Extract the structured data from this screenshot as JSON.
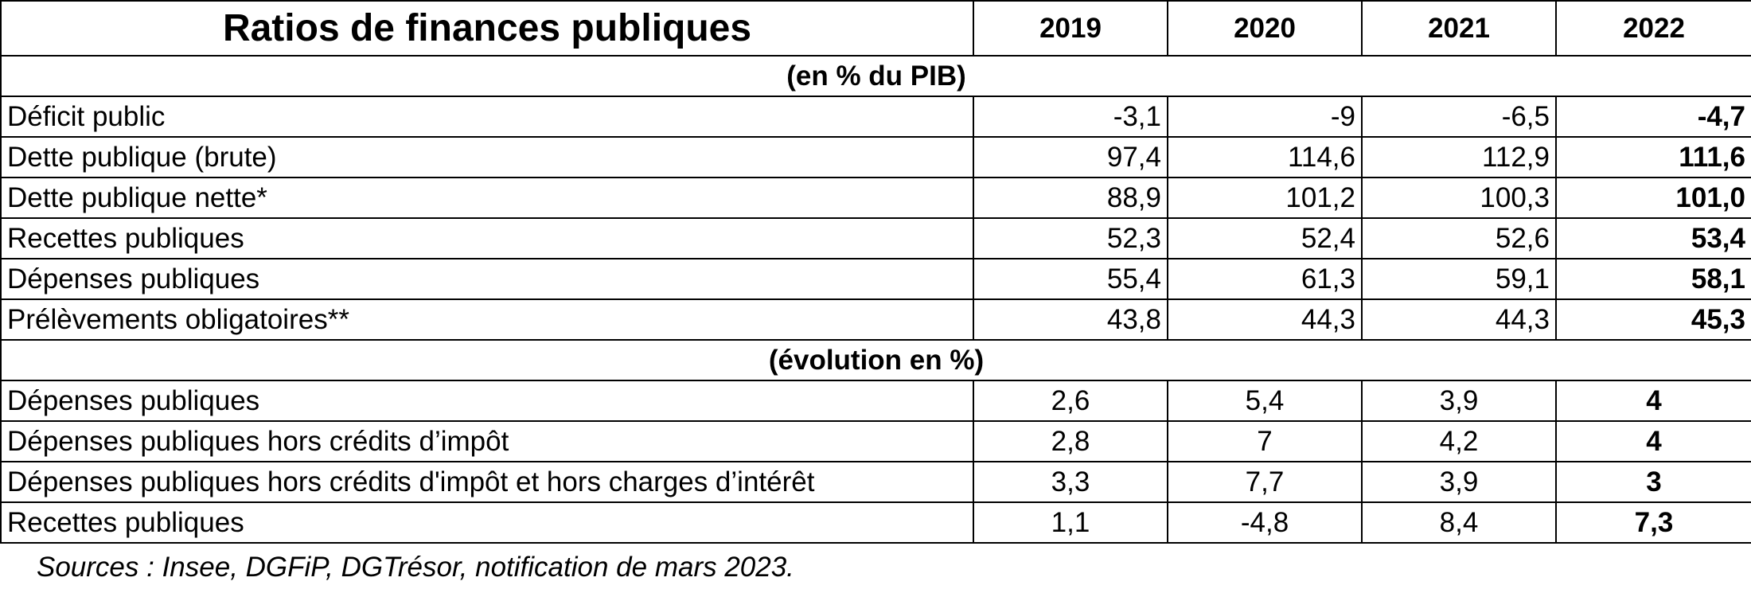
{
  "table": {
    "title": "Ratios de finances publiques",
    "years": [
      "2019",
      "2020",
      "2021",
      "2022"
    ],
    "section1": {
      "heading": "(en % du PIB)",
      "rows": [
        {
          "label": "Déficit public",
          "values": [
            "-3,1",
            "-9",
            "-6,5",
            "-4,7"
          ]
        },
        {
          "label": "Dette publique (brute)",
          "values": [
            "97,4",
            "114,6",
            "112,9",
            "111,6"
          ]
        },
        {
          "label": "Dette publique nette*",
          "values": [
            "88,9",
            "101,2",
            "100,3",
            "101,0"
          ]
        },
        {
          "label": "Recettes publiques",
          "values": [
            "52,3",
            "52,4",
            "52,6",
            "53,4"
          ]
        },
        {
          "label": "Dépenses publiques",
          "values": [
            "55,4",
            "61,3",
            "59,1",
            "58,1"
          ]
        },
        {
          "label": "Prélèvements obligatoires**",
          "values": [
            "43,8",
            "44,3",
            "44,3",
            "45,3"
          ]
        }
      ]
    },
    "section2": {
      "heading": "(évolution en %)",
      "rows": [
        {
          "label": "Dépenses publiques",
          "values": [
            "2,6",
            "5,4",
            "3,9",
            "4"
          ]
        },
        {
          "label": "Dépenses publiques hors crédits d’impôt",
          "values": [
            "2,8",
            "7",
            "4,2",
            "4"
          ]
        },
        {
          "label": "Dépenses publiques hors crédits d'impôt et hors charges d’intérêt",
          "values": [
            "3,3",
            "7,7",
            "3,9",
            "3"
          ]
        },
        {
          "label": "Recettes publiques",
          "values": [
            "1,1",
            "-4,8",
            "8,4",
            "7,3"
          ]
        }
      ]
    }
  },
  "sources": "Sources : Insee, DGFiP, DGTrésor, notification de mars 2023."
}
